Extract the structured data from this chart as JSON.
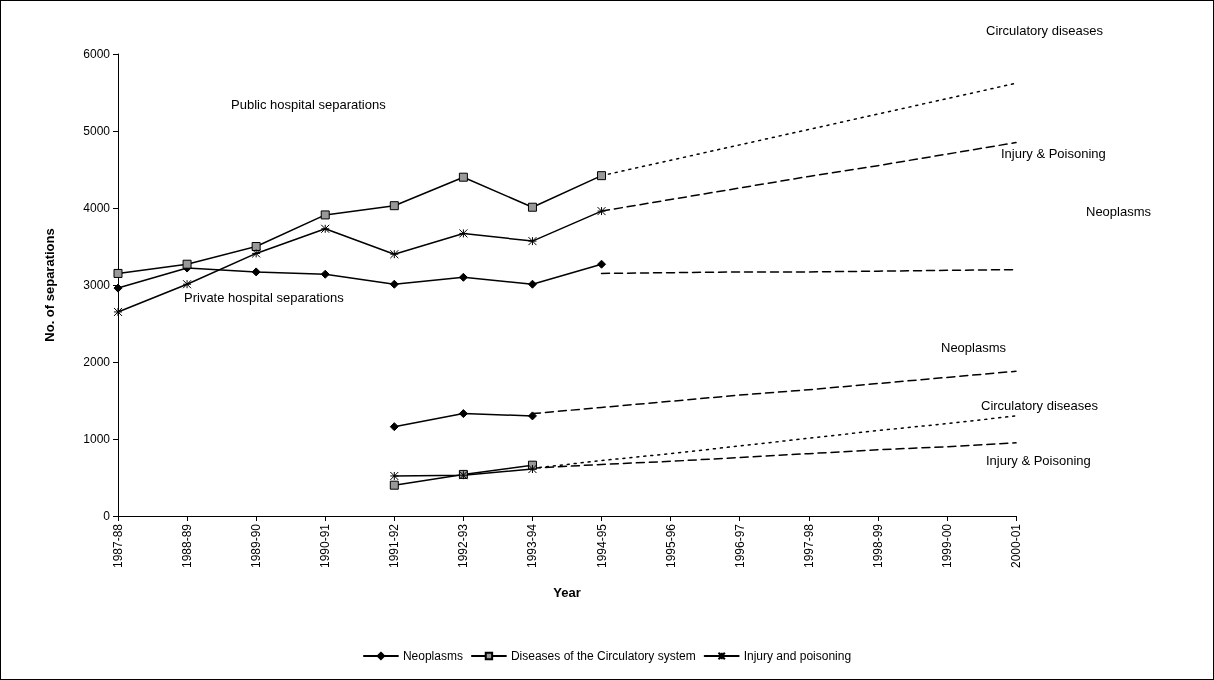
{
  "chart_data": {
    "type": "line",
    "xlabel": "Year",
    "ylabel": "No. of separations",
    "categories": [
      "1987-88",
      "1988-89",
      "1989-90",
      "1990-91",
      "1991-92",
      "1992-93",
      "1993-94",
      "1994-95",
      "1995-96",
      "1996-97",
      "1997-98",
      "1998-99",
      "1999-00",
      "2000-01"
    ],
    "ylim": [
      0,
      6000
    ],
    "yticks": [
      0,
      1000,
      2000,
      3000,
      4000,
      5000,
      6000
    ],
    "legend": "bottom",
    "series": [
      {
        "name": "Neoplasms",
        "color": "#000000",
        "marker": "diamond",
        "line_style": "solid",
        "values": [
          2960,
          3220,
          3170,
          3140,
          3010,
          3100,
          3010,
          3270,
          null,
          null,
          null,
          null,
          null,
          null
        ]
      },
      {
        "name": "Diseases of the Circulatory system",
        "color": "#000000",
        "marker": "square",
        "line_style": "solid",
        "values": [
          3150,
          3270,
          3500,
          3910,
          4030,
          4400,
          4010,
          4420,
          null,
          null,
          null,
          null,
          null,
          null
        ]
      },
      {
        "name": "Injury and poisoning",
        "color": "#000000",
        "marker": "cross",
        "line_style": "solid",
        "values": [
          2650,
          3010,
          3410,
          3730,
          3400,
          3670,
          3570,
          3960,
          null,
          null,
          null,
          null,
          null,
          null
        ]
      },
      {
        "color": "#000000",
        "marker": "diamond",
        "line_style": "solid",
        "values": [
          null,
          null,
          null,
          null,
          1160,
          1330,
          1300,
          null,
          null,
          null,
          null,
          null,
          null,
          null
        ]
      },
      {
        "color": "#000000",
        "marker": "square",
        "line_style": "solid",
        "values": [
          null,
          null,
          null,
          null,
          400,
          540,
          660,
          null,
          null,
          null,
          null,
          null,
          null,
          null
        ]
      },
      {
        "color": "#000000",
        "marker": "cross",
        "line_style": "solid",
        "values": [
          null,
          null,
          null,
          null,
          520,
          530,
          610,
          null,
          null,
          null,
          null,
          null,
          null,
          null
        ]
      },
      {
        "color": "#000000",
        "marker": "none",
        "line_style": "dashed",
        "values": [
          null,
          null,
          null,
          null,
          null,
          null,
          null,
          3150,
          3160,
          3170,
          3170,
          3180,
          3190,
          3200
        ]
      },
      {
        "color": "#000000",
        "marker": "none",
        "line_style": "dotted",
        "values": [
          null,
          null,
          null,
          null,
          null,
          null,
          null,
          4420,
          4620,
          4820,
          5020,
          5220,
          5420,
          5620
        ]
      },
      {
        "color": "#000000",
        "marker": "none",
        "line_style": "dashed",
        "values": [
          null,
          null,
          null,
          null,
          null,
          null,
          null,
          3960,
          4110,
          4260,
          4410,
          4550,
          4700,
          4850
        ]
      },
      {
        "color": "#000000",
        "marker": "none",
        "line_style": "dashed",
        "values": [
          null,
          null,
          null,
          null,
          null,
          null,
          1330,
          1410,
          1490,
          1570,
          1640,
          1720,
          1800,
          1880
        ]
      },
      {
        "color": "#000000",
        "marker": "none",
        "line_style": "dotted",
        "values": [
          null,
          null,
          null,
          null,
          null,
          null,
          620,
          720,
          810,
          910,
          1010,
          1110,
          1200,
          1300
        ]
      },
      {
        "color": "#000000",
        "marker": "none",
        "line_style": "dashed",
        "values": [
          null,
          null,
          null,
          null,
          null,
          null,
          620,
          670,
          710,
          760,
          810,
          860,
          900,
          950
        ]
      }
    ],
    "annotations": [
      "Public hospital separations",
      "Private hospital separations",
      "Circulatory diseases",
      "Injury & Poisoning",
      "Neoplasms",
      "Neoplasms",
      "Circulatory diseases",
      "Injury & Poisoning"
    ]
  }
}
